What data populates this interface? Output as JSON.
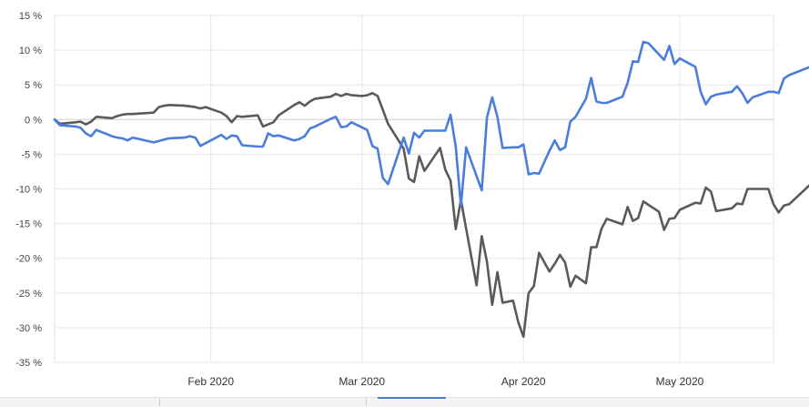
{
  "chart_data": {
    "type": "line",
    "title": "",
    "xlabel": "",
    "ylabel": "",
    "x_range": [
      "2020-01-02",
      "2020-05-19"
    ],
    "ylim": [
      -35,
      15
    ],
    "y_ticks": [
      15,
      10,
      5,
      0,
      -5,
      -10,
      -15,
      -20,
      -25,
      -30,
      -35
    ],
    "y_tick_labels": [
      "15 %",
      "10 %",
      "5 %",
      "0 %",
      "-5 %",
      "-10 %",
      "-15 %",
      "-20 %",
      "-25 %",
      "-30 %",
      "-35 %"
    ],
    "x_ticks": [
      {
        "date": "2020-02-01",
        "label": "Feb 2020"
      },
      {
        "date": "2020-03-01",
        "label": "Mar 2020"
      },
      {
        "date": "2020-04-01",
        "label": "Apr 2020"
      },
      {
        "date": "2020-05-01",
        "label": "May 2020"
      }
    ],
    "grid": true,
    "legend": "none",
    "series": [
      {
        "color": "#4a7ddc",
        "points": [
          [
            "2020-01-02",
            0.0
          ],
          [
            "2020-01-03",
            -0.8
          ],
          [
            "2020-01-06",
            -1.0
          ],
          [
            "2020-01-07",
            -1.2
          ],
          [
            "2020-01-08",
            -2.0
          ],
          [
            "2020-01-09",
            -2.4
          ],
          [
            "2020-01-10",
            -1.5
          ],
          [
            "2020-01-13",
            -2.4
          ],
          [
            "2020-01-14",
            -2.6
          ],
          [
            "2020-01-15",
            -2.7
          ],
          [
            "2020-01-16",
            -3.0
          ],
          [
            "2020-01-17",
            -2.6
          ],
          [
            "2020-01-21",
            -3.3
          ],
          [
            "2020-01-22",
            -3.1
          ],
          [
            "2020-01-23",
            -2.9
          ],
          [
            "2020-01-24",
            -2.7
          ],
          [
            "2020-01-27",
            -2.6
          ],
          [
            "2020-01-28",
            -2.4
          ],
          [
            "2020-01-29",
            -2.6
          ],
          [
            "2020-01-30",
            -3.8
          ],
          [
            "2020-01-31",
            -3.4
          ],
          [
            "2020-02-03",
            -2.2
          ],
          [
            "2020-02-04",
            -2.8
          ],
          [
            "2020-02-05",
            -2.3
          ],
          [
            "2020-02-06",
            -2.4
          ],
          [
            "2020-02-07",
            -3.7
          ],
          [
            "2020-02-10",
            -3.9
          ],
          [
            "2020-02-11",
            -3.9
          ],
          [
            "2020-02-12",
            -2.0
          ],
          [
            "2020-02-13",
            -2.4
          ],
          [
            "2020-02-14",
            -2.3
          ],
          [
            "2020-02-17",
            -3.0
          ],
          [
            "2020-02-18",
            -2.8
          ],
          [
            "2020-02-19",
            -2.4
          ],
          [
            "2020-02-20",
            -1.3
          ],
          [
            "2020-02-21",
            -1.0
          ],
          [
            "2020-02-24",
            0.1
          ],
          [
            "2020-02-25",
            0.4
          ],
          [
            "2020-02-26",
            -1.1
          ],
          [
            "2020-02-27",
            -1.0
          ],
          [
            "2020-02-28",
            -0.4
          ],
          [
            "2020-03-02",
            -1.5
          ],
          [
            "2020-03-03",
            -3.8
          ],
          [
            "2020-03-04",
            -4.2
          ],
          [
            "2020-03-05",
            -8.4
          ],
          [
            "2020-03-06",
            -9.3
          ],
          [
            "2020-03-09",
            -2.6
          ],
          [
            "2020-03-10",
            -4.9
          ],
          [
            "2020-03-11",
            -1.9
          ],
          [
            "2020-03-12",
            -2.6
          ],
          [
            "2020-03-13",
            -1.6
          ],
          [
            "2020-03-16",
            -1.6
          ],
          [
            "2020-03-17",
            -1.6
          ],
          [
            "2020-03-18",
            0.7
          ],
          [
            "2020-03-19",
            -3.9
          ],
          [
            "2020-03-20",
            -12.4
          ],
          [
            "2020-03-21",
            -4.0
          ],
          [
            "2020-03-24",
            -10.2
          ],
          [
            "2020-03-25",
            0.3
          ],
          [
            "2020-03-26",
            3.2
          ],
          [
            "2020-03-27",
            0.4
          ],
          [
            "2020-03-28",
            -4.1
          ],
          [
            "2020-03-30",
            -4.0
          ],
          [
            "2020-03-31",
            -4.0
          ],
          [
            "2020-04-01",
            -3.6
          ],
          [
            "2020-04-02",
            -7.9
          ],
          [
            "2020-04-03",
            -7.7
          ],
          [
            "2020-04-04",
            -7.8
          ],
          [
            "2020-04-06",
            -4.5
          ],
          [
            "2020-04-07",
            -3.0
          ],
          [
            "2020-04-08",
            -4.4
          ],
          [
            "2020-04-09",
            -4.0
          ],
          [
            "2020-04-10",
            -0.3
          ],
          [
            "2020-04-11",
            0.4
          ],
          [
            "2020-04-13",
            3.0
          ],
          [
            "2020-04-14",
            6.0
          ],
          [
            "2020-04-15",
            2.6
          ],
          [
            "2020-04-16",
            2.4
          ],
          [
            "2020-04-17",
            2.4
          ],
          [
            "2020-04-20",
            3.3
          ],
          [
            "2020-04-21",
            5.3
          ],
          [
            "2020-04-22",
            8.4
          ],
          [
            "2020-04-23",
            8.3
          ],
          [
            "2020-04-24",
            11.2
          ],
          [
            "2020-04-25",
            11.0
          ],
          [
            "2020-04-28",
            8.6
          ],
          [
            "2020-04-29",
            10.6
          ],
          [
            "2020-04-30",
            8.0
          ],
          [
            "2020-05-01",
            8.8
          ],
          [
            "2020-05-04",
            7.6
          ],
          [
            "2020-05-05",
            4.0
          ],
          [
            "2020-05-06",
            2.2
          ],
          [
            "2020-05-07",
            3.3
          ],
          [
            "2020-05-08",
            3.6
          ],
          [
            "2020-05-11",
            4.0
          ],
          [
            "2020-05-12",
            4.8
          ],
          [
            "2020-05-13",
            3.8
          ],
          [
            "2020-05-14",
            2.4
          ],
          [
            "2020-05-15",
            3.2
          ],
          [
            "2020-05-18",
            4.0
          ],
          [
            "2020-05-19",
            4.0
          ],
          [
            "2020-05-20",
            3.8
          ],
          [
            "2020-05-21",
            5.9
          ],
          [
            "2020-05-22",
            6.4
          ],
          [
            "2020-05-26",
            7.6
          ]
        ]
      },
      {
        "color": "#5a5a5a",
        "points": [
          [
            "2020-01-02",
            0.0
          ],
          [
            "2020-01-03",
            -0.6
          ],
          [
            "2020-01-06",
            -0.4
          ],
          [
            "2020-01-07",
            -0.3
          ],
          [
            "2020-01-08",
            -0.7
          ],
          [
            "2020-01-09",
            -0.3
          ],
          [
            "2020-01-10",
            0.4
          ],
          [
            "2020-01-13",
            0.2
          ],
          [
            "2020-01-14",
            0.5
          ],
          [
            "2020-01-15",
            0.7
          ],
          [
            "2020-01-16",
            0.8
          ],
          [
            "2020-01-17",
            0.8
          ],
          [
            "2020-01-21",
            1.0
          ],
          [
            "2020-01-22",
            1.8
          ],
          [
            "2020-01-23",
            2.0
          ],
          [
            "2020-01-24",
            2.1
          ],
          [
            "2020-01-27",
            2.0
          ],
          [
            "2020-01-28",
            1.9
          ],
          [
            "2020-01-29",
            1.8
          ],
          [
            "2020-01-30",
            1.6
          ],
          [
            "2020-01-31",
            1.8
          ],
          [
            "2020-02-03",
            1.0
          ],
          [
            "2020-02-04",
            0.5
          ],
          [
            "2020-02-05",
            -0.4
          ],
          [
            "2020-02-06",
            0.5
          ],
          [
            "2020-02-07",
            0.4
          ],
          [
            "2020-02-10",
            0.6
          ],
          [
            "2020-02-11",
            -1.0
          ],
          [
            "2020-02-12",
            -0.7
          ],
          [
            "2020-02-13",
            -0.4
          ],
          [
            "2020-02-14",
            0.6
          ],
          [
            "2020-02-17",
            2.1
          ],
          [
            "2020-02-18",
            2.5
          ],
          [
            "2020-02-19",
            2.0
          ],
          [
            "2020-02-20",
            2.6
          ],
          [
            "2020-02-21",
            3.0
          ],
          [
            "2020-02-24",
            3.3
          ],
          [
            "2020-02-25",
            3.7
          ],
          [
            "2020-02-26",
            3.4
          ],
          [
            "2020-02-27",
            3.7
          ],
          [
            "2020-02-28",
            3.5
          ],
          [
            "2020-03-01",
            3.4
          ],
          [
            "2020-03-02",
            3.5
          ],
          [
            "2020-03-03",
            3.8
          ],
          [
            "2020-03-04",
            3.4
          ],
          [
            "2020-03-05",
            1.4
          ],
          [
            "2020-03-06",
            -0.6
          ],
          [
            "2020-03-09",
            -4.2
          ],
          [
            "2020-03-10",
            -8.5
          ],
          [
            "2020-03-11",
            -9.0
          ],
          [
            "2020-03-12",
            -5.3
          ],
          [
            "2020-03-13",
            -7.4
          ],
          [
            "2020-03-16",
            -4.1
          ],
          [
            "2020-03-17",
            -7.2
          ],
          [
            "2020-03-18",
            -8.8
          ],
          [
            "2020-03-19",
            -15.8
          ],
          [
            "2020-03-20",
            -11.6
          ],
          [
            "2020-03-21",
            -15.7
          ],
          [
            "2020-03-23",
            -23.9
          ],
          [
            "2020-03-24",
            -16.8
          ],
          [
            "2020-03-25",
            -20.5
          ],
          [
            "2020-03-26",
            -26.7
          ],
          [
            "2020-03-27",
            -22.0
          ],
          [
            "2020-03-28",
            -26.4
          ],
          [
            "2020-03-30",
            -26.1
          ],
          [
            "2020-03-31",
            -29.2
          ],
          [
            "2020-04-01",
            -31.3
          ],
          [
            "2020-04-02",
            -25.0
          ],
          [
            "2020-04-03",
            -24.0
          ],
          [
            "2020-04-04",
            -19.2
          ],
          [
            "2020-04-06",
            -21.9
          ],
          [
            "2020-04-07",
            -20.8
          ],
          [
            "2020-04-08",
            -19.5
          ],
          [
            "2020-04-09",
            -20.6
          ],
          [
            "2020-04-10",
            -24.1
          ],
          [
            "2020-04-11",
            -22.5
          ],
          [
            "2020-04-13",
            -23.6
          ],
          [
            "2020-04-14",
            -18.4
          ],
          [
            "2020-04-15",
            -18.4
          ],
          [
            "2020-04-16",
            -15.7
          ],
          [
            "2020-04-17",
            -14.3
          ],
          [
            "2020-04-20",
            -15.1
          ],
          [
            "2020-04-21",
            -12.6
          ],
          [
            "2020-04-22",
            -14.6
          ],
          [
            "2020-04-23",
            -14.2
          ],
          [
            "2020-04-24",
            -11.8
          ],
          [
            "2020-04-25",
            -12.3
          ],
          [
            "2020-04-27",
            -13.3
          ],
          [
            "2020-04-28",
            -15.9
          ],
          [
            "2020-04-29",
            -14.3
          ],
          [
            "2020-04-30",
            -14.2
          ],
          [
            "2020-05-01",
            -13.0
          ],
          [
            "2020-05-04",
            -12.0
          ],
          [
            "2020-05-05",
            -12.1
          ],
          [
            "2020-05-06",
            -9.8
          ],
          [
            "2020-05-07",
            -10.4
          ],
          [
            "2020-05-08",
            -13.2
          ],
          [
            "2020-05-11",
            -12.8
          ],
          [
            "2020-05-12",
            -12.1
          ],
          [
            "2020-05-13",
            -12.2
          ],
          [
            "2020-05-14",
            -10.0
          ],
          [
            "2020-05-15",
            -10.0
          ],
          [
            "2020-05-18",
            -10.0
          ],
          [
            "2020-05-19",
            -12.2
          ],
          [
            "2020-05-20",
            -13.4
          ],
          [
            "2020-05-21",
            -12.4
          ],
          [
            "2020-05-22",
            -12.2
          ],
          [
            "2020-05-26",
            -9.4
          ]
        ]
      }
    ]
  }
}
